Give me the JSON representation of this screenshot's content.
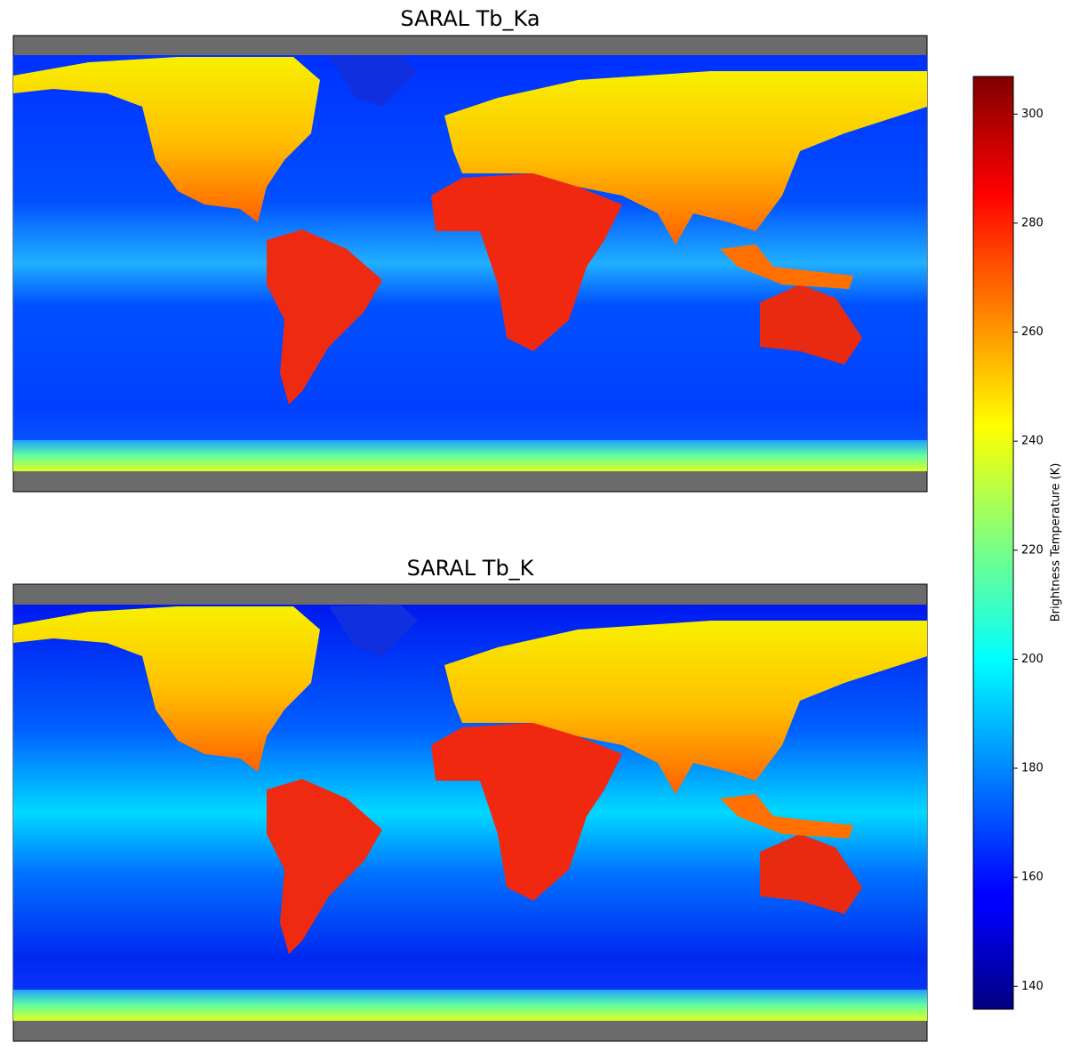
{
  "panels": [
    {
      "title": "SARAL Tb_Ka"
    },
    {
      "title": "SARAL Tb_K"
    }
  ],
  "colorbar": {
    "label": "Brightness Temperature (K)",
    "colormap": "jet",
    "lim": [
      135.8,
      306.9
    ],
    "ticks": [
      140,
      160,
      180,
      200,
      220,
      240,
      260,
      280,
      300
    ]
  }
}
